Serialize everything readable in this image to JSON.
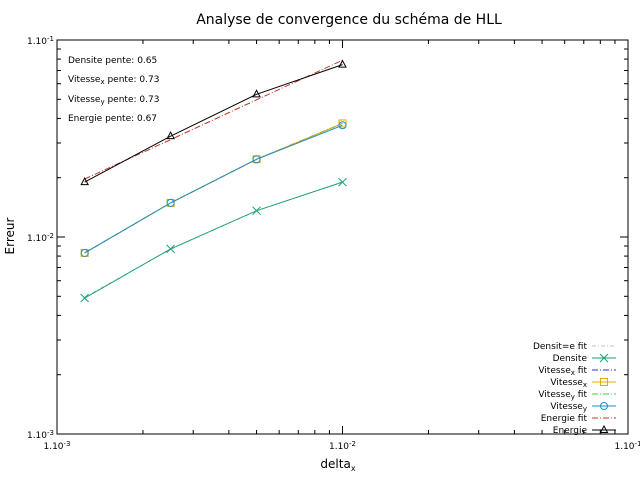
{
  "chart_data": {
    "type": "line",
    "title": "Analyse de convergence du schéma de HLL",
    "xlabel": "delta",
    "xlabel_sub": "x",
    "ylabel": "Erreur",
    "xscale": "log",
    "yscale": "log",
    "xlim": [
      0.001,
      0.1
    ],
    "ylim": [
      0.001,
      0.1
    ],
    "grid": false,
    "legend_position": "bottom-right",
    "x_ticks": [
      {
        "value": 0.001,
        "base": "1.10",
        "exp": "-3"
      },
      {
        "value": 0.01,
        "base": "1.10",
        "exp": "-2"
      },
      {
        "value": 0.1,
        "base": "1.10",
        "exp": "-1"
      }
    ],
    "y_ticks": [
      {
        "value": 0.001,
        "base": "1.10",
        "exp": "-3"
      },
      {
        "value": 0.01,
        "base": "1.10",
        "exp": "-2"
      },
      {
        "value": 0.1,
        "base": "1.10",
        "exp": "-1"
      }
    ],
    "annotations": [
      {
        "pre": "Densite pente: 0.65",
        "sub": "",
        "post": ""
      },
      {
        "pre": "Vitesse",
        "sub": "x",
        "post": " pente: 0.73"
      },
      {
        "pre": "Vitesse",
        "sub": "y",
        "post": " pente: 0.73"
      },
      {
        "pre": "Energie pente: 0.67",
        "sub": "",
        "post": ""
      }
    ],
    "series": [
      {
        "name": "Densit=e fit",
        "name_sub": "",
        "kind": "fit",
        "color": "#c0c0c0",
        "dash": "4 2 1 2",
        "x": [
          0.00125,
          0.0025,
          0.005,
          0.01
        ],
        "y": [
          0.00495,
          0.00867,
          0.01356,
          0.01902
        ]
      },
      {
        "name": "Densite",
        "name_sub": "",
        "kind": "data",
        "marker": "x",
        "color": "#1ba37b",
        "x": [
          0.00125,
          0.0025,
          0.005,
          0.01
        ],
        "y": [
          0.0049,
          0.0087,
          0.0136,
          0.019
        ]
      },
      {
        "name": "Vitesse",
        "name_sub": "x",
        "name_post": " fit",
        "kind": "fit",
        "color": "#2b2bd8",
        "dash": "6 2 1 2",
        "x": [
          0.00125,
          0.0025,
          0.005,
          0.01
        ],
        "y": [
          0.0083,
          0.0149,
          0.0248,
          0.0377
        ]
      },
      {
        "name": "Vitesse",
        "name_sub": "x",
        "name_post": "",
        "kind": "data",
        "marker": "square",
        "color": "#e2a900",
        "x": [
          0.00125,
          0.0025,
          0.005,
          0.01
        ],
        "y": [
          0.0083,
          0.0149,
          0.0248,
          0.0377
        ]
      },
      {
        "name": "Vitesse",
        "name_sub": "y",
        "name_post": " fit",
        "kind": "fit",
        "color": "#35d94a",
        "dash": "6 2 1 2",
        "x": [
          0.00125,
          0.0025,
          0.005,
          0.01
        ],
        "y": [
          0.0083,
          0.0149,
          0.0248,
          0.0377
        ]
      },
      {
        "name": "Vitesse",
        "name_sub": "y",
        "name_post": "",
        "kind": "data",
        "marker": "circle",
        "color": "#1c8fc4",
        "x": [
          0.00125,
          0.0025,
          0.005,
          0.01
        ],
        "y": [
          0.0083,
          0.0149,
          0.0248,
          0.0369
        ]
      },
      {
        "name": "Energie fit",
        "name_sub": "",
        "kind": "fit",
        "color": "#c0392b",
        "dash": "6 2 1 2",
        "x": [
          0.00125,
          0.0025,
          0.005,
          0.01
        ],
        "y": [
          0.0197,
          0.0312,
          0.0497,
          0.0789
        ]
      },
      {
        "name": "Energie",
        "name_sub": "",
        "kind": "data",
        "marker": "triangle",
        "color": "#000000",
        "x": [
          0.00125,
          0.0025,
          0.005,
          0.01
        ],
        "y": [
          0.019,
          0.0325,
          0.053,
          0.075
        ]
      }
    ]
  }
}
